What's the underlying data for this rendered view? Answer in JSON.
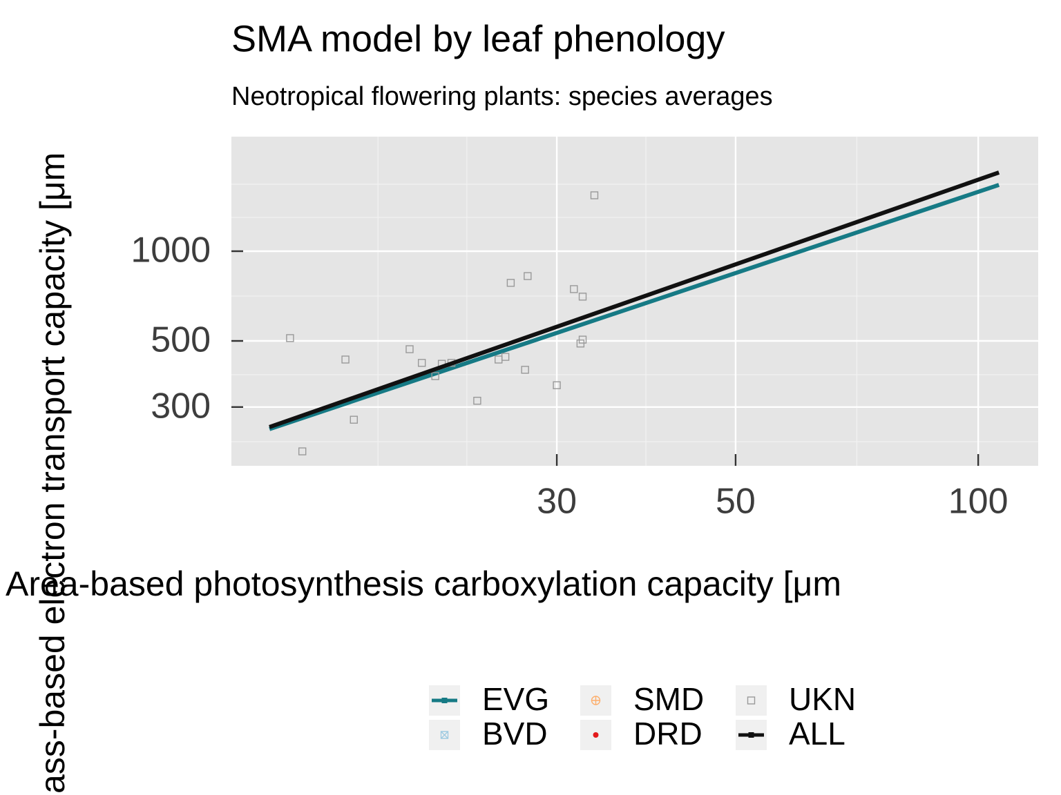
{
  "chart_data": {
    "type": "scatter",
    "title": "SMA model by leaf phenology",
    "subtitle": "Neotropical flowering plants: species averages",
    "x_label": "Area-based photosynthesis carboxylation capacity [μm",
    "y_label": "ass-based electron transport capacity [μm",
    "log_x": true,
    "log_y": true,
    "grid": true,
    "xlim": [
      11.84,
      118.7
    ],
    "ylim": [
      190.5,
      2423
    ],
    "xticks": [
      30,
      50,
      100
    ],
    "yticks": [
      300,
      500,
      1000
    ],
    "xminor": [
      18,
      23.2,
      38.7,
      70.7
    ],
    "yminor": [
      229.6,
      385,
      707,
      1299,
      1677
    ],
    "legend": "bottom",
    "series": [
      {
        "name": "EVG",
        "color": "#167a85",
        "marker": "line",
        "x": [
          13.2,
          106.1
        ],
        "values": [
          253,
          1669
        ]
      },
      {
        "name": "BVD",
        "color": "#9ecae1",
        "marker": "crossbox",
        "x": [],
        "values": []
      },
      {
        "name": "SMD",
        "color": "#fdae6b",
        "marker": "circleplus",
        "x": [],
        "values": []
      },
      {
        "name": "DRD",
        "color": "#e31a1c",
        "marker": "dot",
        "x": [],
        "values": []
      },
      {
        "name": "UKN",
        "color": "#999999",
        "marker": "square",
        "x": [
          14.0,
          14.5,
          16.4,
          16.8,
          19.7,
          20.4,
          21.2,
          21.6,
          22.2,
          23.9,
          25.4,
          25.9,
          26.3,
          27.4,
          27.6,
          30.0,
          31.5,
          32.1,
          32.3,
          32.3,
          33.4
        ],
        "values": [
          511,
          213,
          433,
          272,
          469,
          422,
          381,
          419,
          422,
          315,
          433,
          442,
          783,
          400,
          825,
          355,
          746,
          490,
          505,
          704,
          1540
        ]
      },
      {
        "name": "ALL",
        "color": "#111111",
        "marker": "line",
        "x": [
          13.2,
          106.1
        ],
        "values": [
          257,
          1837
        ]
      }
    ]
  }
}
